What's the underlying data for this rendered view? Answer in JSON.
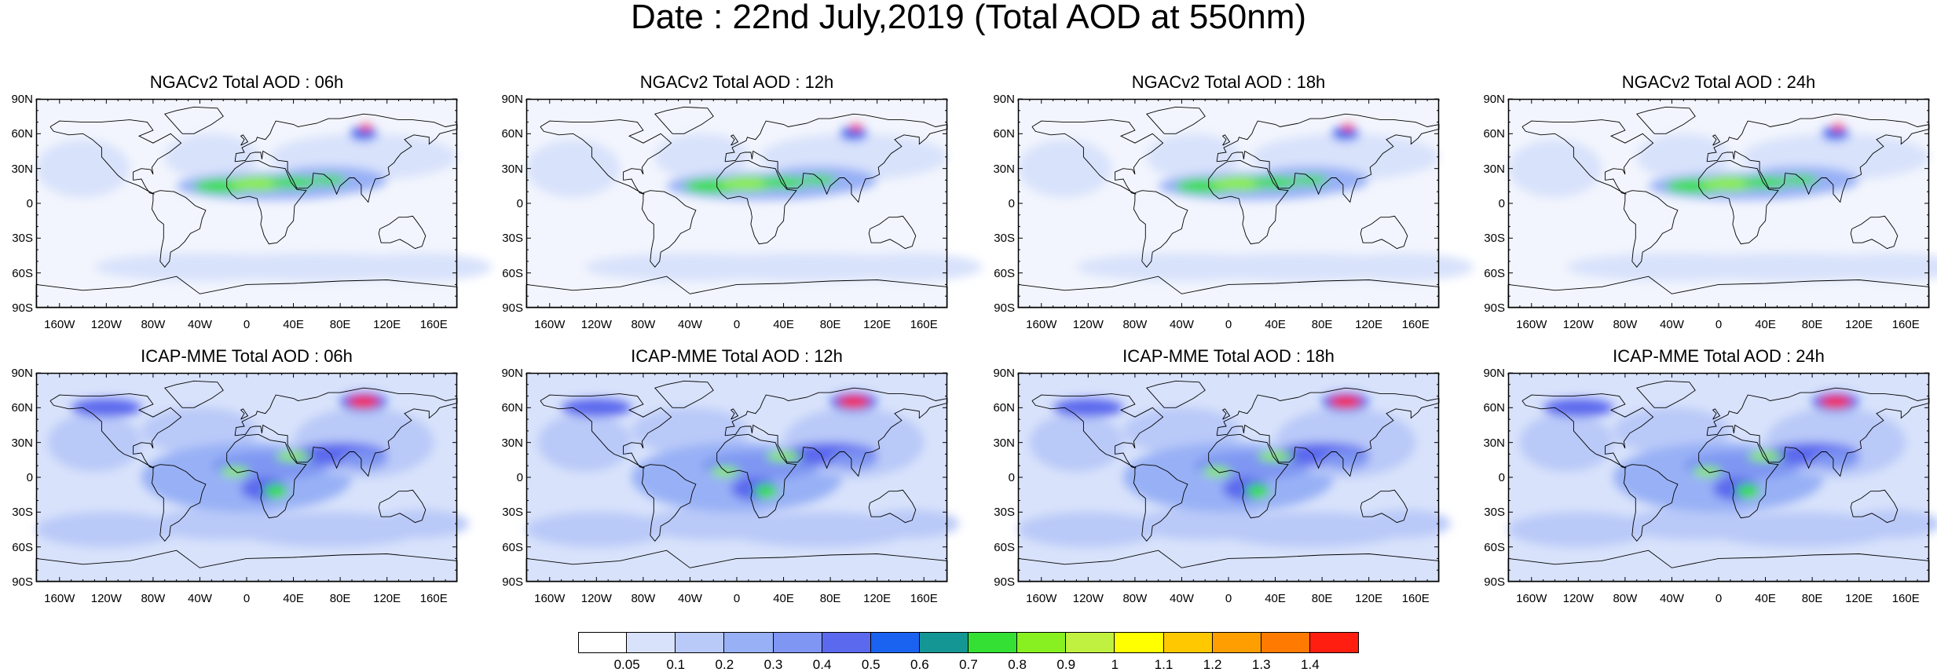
{
  "title": "Date : 22nd July,2019 (Total AOD at 550nm)",
  "panels": [
    {
      "id": "ngac-06",
      "title": "NGACv2 Total AOD : 06h",
      "model": "NGACv2"
    },
    {
      "id": "ngac-12",
      "title": "NGACv2 Total AOD : 12h",
      "model": "NGACv2"
    },
    {
      "id": "ngac-18",
      "title": "NGACv2 Total AOD : 18h",
      "model": "NGACv2"
    },
    {
      "id": "ngac-24",
      "title": "NGACv2 Total AOD : 24h",
      "model": "NGACv2"
    },
    {
      "id": "icap-06",
      "title": "ICAP-MME Total AOD : 06h",
      "model": "ICAP-MME"
    },
    {
      "id": "icap-12",
      "title": "ICAP-MME Total AOD : 12h",
      "model": "ICAP-MME"
    },
    {
      "id": "icap-18",
      "title": "ICAP-MME Total AOD : 18h",
      "model": "ICAP-MME"
    },
    {
      "id": "icap-24",
      "title": "ICAP-MME Total AOD : 24h",
      "model": "ICAP-MME"
    }
  ],
  "lat_ticks": [
    "90N",
    "60N",
    "30N",
    "0",
    "30S",
    "60S",
    "90S"
  ],
  "lon_ticks": [
    "160W",
    "120W",
    "80W",
    "40W",
    "0",
    "40E",
    "80E",
    "120E",
    "160E"
  ],
  "colorbar": {
    "levels": [
      "0.05",
      "0.1",
      "0.2",
      "0.3",
      "0.4",
      "0.5",
      "0.6",
      "0.7",
      "0.8",
      "0.9",
      "1",
      "1.1",
      "1.2",
      "1.3",
      "1.4"
    ],
    "colors": [
      "#ffffff",
      "#d8e2fb",
      "#b9c9f8",
      "#98b1f6",
      "#7f96f2",
      "#5b69ee",
      "#1a63f0",
      "#149694",
      "#34e034",
      "#88f020",
      "#c0f040",
      "#ffff00",
      "#ffc800",
      "#ff9e00",
      "#ff7a00",
      "#ff1e10"
    ]
  }
}
